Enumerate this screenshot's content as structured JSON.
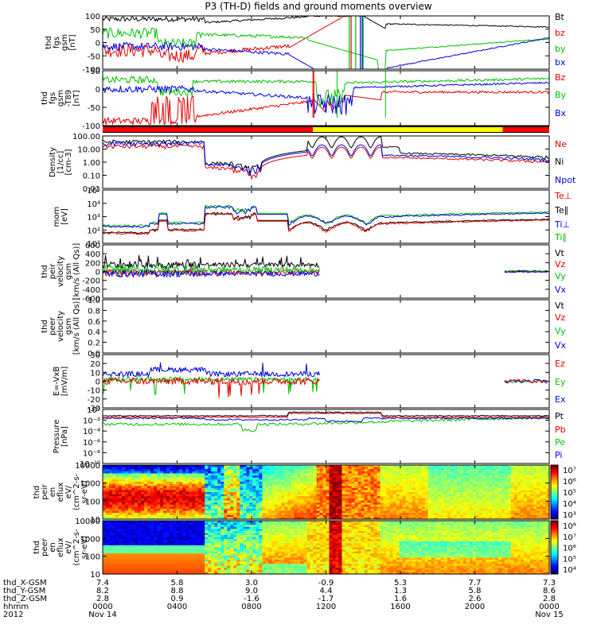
{
  "chart_data": {
    "type": "line",
    "title": "P3 (TH-D) fields and ground moments overview",
    "x_axis": {
      "unit": "hours",
      "range": [
        0,
        24
      ],
      "tick_hours": [
        0,
        4,
        8,
        12,
        16,
        20,
        24
      ],
      "rows": [
        {
          "label": "thd_X-GSM",
          "values": [
            "7.4",
            "5.8",
            "3.0",
            "-0.9",
            "5.3",
            "7.7",
            "7.3"
          ]
        },
        {
          "label": "thd_Y-GSM",
          "values": [
            "8.2",
            "8.8",
            "9.0",
            "4.4",
            "1.3",
            "5.8",
            "8.6"
          ]
        },
        {
          "label": "thd_Z-GSM",
          "values": [
            "2.8",
            "0.9",
            "-1.6",
            "-1.7",
            "1.6",
            "2.6",
            "2.8"
          ]
        },
        {
          "label": "hhmm",
          "values": [
            "0000",
            "0400",
            "0800",
            "1200",
            "1600",
            "2000",
            "0000"
          ]
        },
        {
          "label": "2012",
          "values": [
            "Nov 14",
            "",
            "",
            "",
            "",
            "",
            "Nov 15"
          ]
        }
      ]
    },
    "panels": [
      {
        "id": "fgs",
        "ylabel": [
          "thd",
          "fgs",
          "gsm",
          "[nT]"
        ],
        "ylim": [
          -100,
          100
        ],
        "scale": "linear",
        "ticks": [
          "100",
          "50",
          "0",
          "-50",
          "-100"
        ],
        "legend": [
          {
            "name": "Bt",
            "color": "#000000"
          },
          {
            "name": "bz",
            "color": "#e00000"
          },
          {
            "name": "by",
            "color": "#00c000"
          },
          {
            "name": "bx",
            "color": "#0000e0"
          }
        ]
      },
      {
        "id": "t89",
        "ylabel": [
          "thd",
          "fgs",
          "gsm",
          "-T89",
          "[nT]"
        ],
        "ylim": [
          -130,
          50
        ],
        "scale": "linear",
        "ticks": [
          "50",
          "0",
          "-50",
          "-100"
        ],
        "legend": [
          {
            "name": "Bz",
            "color": "#e00000"
          },
          {
            "name": "By",
            "color": "#00c000"
          },
          {
            "name": "Bx",
            "color": "#0000e0"
          }
        ]
      },
      {
        "id": "density",
        "ylabel": [
          "Density",
          "[1/cc]",
          "[cm-3]"
        ],
        "ylim": [
          0.01,
          100
        ],
        "scale": "log",
        "ticks": [
          "100.00",
          "10.00",
          "1.00",
          "0.10",
          "0.01"
        ],
        "legend": [
          {
            "name": "Ne",
            "color": "#e00000"
          },
          {
            "name": "Ni",
            "color": "#000000"
          },
          {
            "name": "Npot",
            "color": "#0000e0"
          }
        ]
      },
      {
        "id": "temperature",
        "ylabel": [
          "mom",
          "[eV]"
        ],
        "ylim": [
          10,
          100000
        ],
        "scale": "log",
        "ticks": [
          "10⁵",
          "10⁴",
          "10³",
          "10²",
          "10¹"
        ],
        "legend": [
          {
            "name": "Te⊥",
            "color": "#e00000"
          },
          {
            "name": "Te∥",
            "color": "#000000"
          },
          {
            "name": "Ti⊥",
            "color": "#0000e0"
          },
          {
            "name": "Ti∥",
            "color": "#00c000"
          }
        ]
      },
      {
        "id": "peir_velocity",
        "ylabel": [
          "thd",
          "peir",
          "velocity",
          "gsm",
          "[km/s (All Qs)]"
        ],
        "ylim": [
          -600,
          600
        ],
        "scale": "linear",
        "ticks": [
          "600",
          "400",
          "200",
          "0",
          "-200",
          "-400",
          "-600"
        ],
        "legend": [
          {
            "name": "Vt",
            "color": "#000000"
          },
          {
            "name": "Vz",
            "color": "#e00000"
          },
          {
            "name": "Vy",
            "color": "#00c000"
          },
          {
            "name": "Vx",
            "color": "#0000e0"
          }
        ]
      },
      {
        "id": "peer_velocity",
        "ylabel": [
          "thd",
          "peer",
          "velocity",
          "gsm",
          "[km/s (All Qs)]"
        ],
        "ylim": [
          0,
          1
        ],
        "scale": "linear",
        "ticks": [
          "1.0",
          "0.8",
          "0.6",
          "0.4",
          "0.2",
          "0.0"
        ],
        "legend": [
          {
            "name": "Vt",
            "color": "#000000"
          },
          {
            "name": "Vz",
            "color": "#e00000"
          },
          {
            "name": "Vy",
            "color": "#00c000"
          },
          {
            "name": "Vx",
            "color": "#0000e0"
          }
        ]
      },
      {
        "id": "efield",
        "ylabel": [
          "E=-VxB",
          "[mV/m]"
        ],
        "ylim": [
          -30,
          30
        ],
        "scale": "linear",
        "ticks": [
          "30",
          "20",
          "10",
          "0",
          "-10",
          "-20",
          "-30"
        ],
        "legend": [
          {
            "name": "Ez",
            "color": "#e00000"
          },
          {
            "name": "Ey",
            "color": "#00c000"
          },
          {
            "name": "Ex",
            "color": "#0000e0"
          }
        ]
      },
      {
        "id": "pressure",
        "ylabel": [
          "Pressure",
          "[nPa]"
        ],
        "ylim": [
          1e-10,
          10
        ],
        "scale": "log",
        "ticks": [
          "10⁰",
          "10⁻²",
          "10⁻⁴",
          "10⁻⁶",
          "10⁻⁸",
          "10⁻¹⁰"
        ],
        "legend": [
          {
            "name": "Pt",
            "color": "#000000"
          },
          {
            "name": "Pb",
            "color": "#e00000"
          },
          {
            "name": "Pe",
            "color": "#00c000"
          },
          {
            "name": "Pi",
            "color": "#0000e0"
          }
        ]
      },
      {
        "id": "peir_eflux",
        "ylabel": [
          "thd",
          "peir",
          "en",
          "eflux",
          "eV/",
          "(cm^2-s-",
          "sr-eV)"
        ],
        "ylim": [
          10,
          20000
        ],
        "scale": "log",
        "ticks": [
          "10000",
          "1000",
          "100",
          "10"
        ],
        "colorbar_ticks": [
          "10⁷",
          "10⁶",
          "10⁵",
          "10⁴",
          "10³"
        ]
      },
      {
        "id": "peer_eflux",
        "ylabel": [
          "thd",
          "peer",
          "en",
          "eflux",
          "eV/",
          "(cm^2-s-",
          "sr-eV)"
        ],
        "ylim": [
          7,
          20000
        ],
        "scale": "log",
        "ticks": [
          "10000",
          "1000",
          "100",
          "10"
        ],
        "colorbar_ticks": [
          "10⁸",
          "10⁷",
          "10⁶",
          "10⁵",
          "10⁴"
        ]
      }
    ],
    "region_bar": {
      "segments": [
        {
          "from": 0,
          "to": 11.3,
          "color": "#ff0000"
        },
        {
          "from": 11.3,
          "to": 21.5,
          "color": "#ffff00"
        },
        {
          "from": 21.5,
          "to": 24,
          "color": "#ff0000"
        }
      ]
    }
  }
}
